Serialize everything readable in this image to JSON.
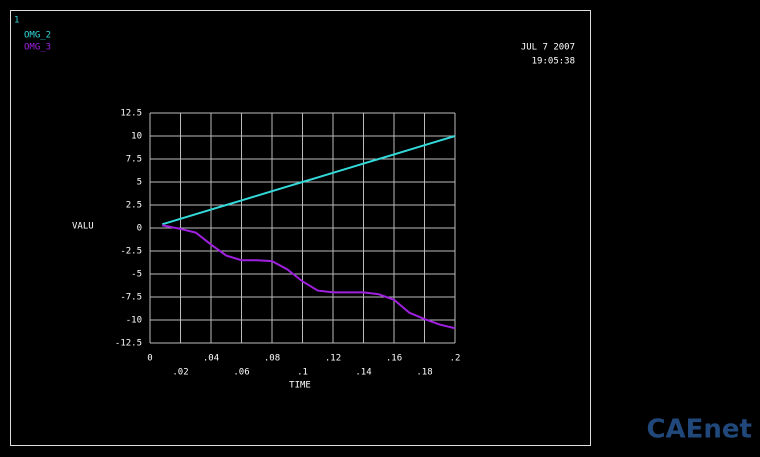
{
  "chart_data": {
    "type": "line",
    "plot_number": "1",
    "date": "JUL  7 2007",
    "time": "19:05:38",
    "xlabel": "TIME",
    "ylabel": "VALU",
    "watermark": "CAEnet",
    "x": [
      0.008,
      0.02,
      0.03,
      0.04,
      0.05,
      0.06,
      0.07,
      0.08,
      0.09,
      0.1,
      0.11,
      0.12,
      0.13,
      0.14,
      0.15,
      0.16,
      0.17,
      0.18,
      0.19,
      0.2
    ],
    "series": [
      {
        "name": "OMG_2",
        "color": "#33d9d9",
        "values": [
          0.4,
          1,
          1.5,
          2,
          2.5,
          3,
          3.5,
          4,
          4.5,
          5,
          5.5,
          6,
          6.5,
          7,
          7.5,
          8,
          8.5,
          9,
          9.5,
          10
        ]
      },
      {
        "name": "OMG_3",
        "color": "#a020e0",
        "values": [
          0.3,
          -0.1,
          -0.5,
          -1.8,
          -3,
          -3.5,
          -3.5,
          -3.6,
          -4.5,
          -5.8,
          -6.8,
          -7,
          -7,
          -7,
          -7.2,
          -7.8,
          -9.2,
          -9.9,
          -10.5,
          -10.9
        ]
      }
    ],
    "xlim": [
      0,
      0.2
    ],
    "xticks": [
      0,
      {
        "value": 0.02,
        "label": ".02"
      },
      {
        "value": 0.04,
        "label": ".04"
      },
      {
        "value": 0.06,
        "label": ".06"
      },
      {
        "value": 0.08,
        "label": ".08"
      },
      {
        "value": 0.1,
        "label": ".1"
      },
      {
        "value": 0.12,
        "label": ".12"
      },
      {
        "value": 0.14,
        "label": ".14"
      },
      {
        "value": 0.16,
        "label": ".16"
      },
      {
        "value": 0.18,
        "label": ".18"
      },
      {
        "value": 0.2,
        "label": ".2"
      }
    ],
    "ylim": [
      -12.5,
      12.5
    ],
    "yticks": [
      12.5,
      10,
      7.5,
      5,
      2.5,
      0,
      -2.5,
      -5,
      -7.5,
      -10,
      -12.5
    ],
    "grid": true
  }
}
